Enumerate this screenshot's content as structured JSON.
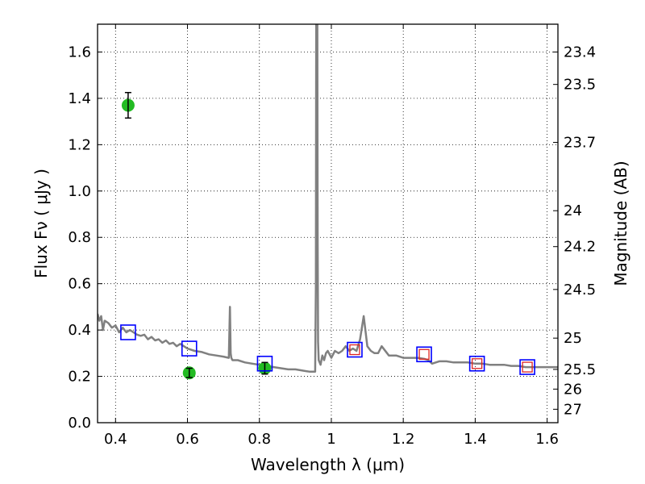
{
  "chart_data": {
    "type": "scatter",
    "title": "",
    "xlabel": "Wavelength  λ (μm)",
    "ylabel": "Flux  Fν  ( μJy )",
    "y2label": "Magnitude (AB)",
    "xlim": [
      0.35,
      1.63
    ],
    "ylim": [
      0.0,
      1.72
    ],
    "grid": true,
    "x_ticks": [
      0.4,
      0.6,
      0.8,
      1.0,
      1.2,
      1.4,
      1.6
    ],
    "x_tick_labels": [
      "0.4",
      "0.6",
      "0.8",
      "1",
      "1.2",
      "1.4",
      "1.6"
    ],
    "y_ticks": [
      0.0,
      0.2,
      0.4,
      0.6,
      0.8,
      1.0,
      1.2,
      1.4,
      1.6
    ],
    "y_tick_labels": [
      "0.0",
      "0.2",
      "0.4",
      "0.6",
      "0.8",
      "1.0",
      "1.2",
      "1.4",
      "1.6"
    ],
    "y2_ticks": [
      {
        "label": "23.4",
        "flux": 1.6
      },
      {
        "label": "23.5",
        "flux": 1.46
      },
      {
        "label": "23.7",
        "flux": 1.21
      },
      {
        "label": "24",
        "flux": 0.915
      },
      {
        "label": "24.2",
        "flux": 0.76
      },
      {
        "label": "24.5",
        "flux": 0.575
      },
      {
        "label": "25",
        "flux": 0.365
      },
      {
        "label": "25.5",
        "flux": 0.23
      },
      {
        "label": "26",
        "flux": 0.145
      },
      {
        "label": "27",
        "flux": 0.058
      }
    ],
    "series": [
      {
        "kind": "line",
        "color": "#808080",
        "x": [
          0.35,
          0.355,
          0.36,
          0.365,
          0.37,
          0.38,
          0.39,
          0.4,
          0.41,
          0.42,
          0.43,
          0.44,
          0.45,
          0.46,
          0.47,
          0.48,
          0.49,
          0.5,
          0.51,
          0.52,
          0.53,
          0.54,
          0.55,
          0.56,
          0.57,
          0.58,
          0.6,
          0.62,
          0.64,
          0.66,
          0.68,
          0.7,
          0.715,
          0.718,
          0.72,
          0.722,
          0.725,
          0.74,
          0.76,
          0.78,
          0.8,
          0.82,
          0.84,
          0.86,
          0.88,
          0.9,
          0.92,
          0.94,
          0.955,
          0.957,
          0.958,
          0.959,
          0.96,
          0.961,
          0.962,
          0.963,
          0.965,
          0.97,
          0.975,
          0.98,
          0.985,
          0.99,
          1.0,
          1.01,
          1.02,
          1.03,
          1.04,
          1.05,
          1.06,
          1.07,
          1.08,
          1.09,
          1.1,
          1.11,
          1.12,
          1.13,
          1.14,
          1.16,
          1.18,
          1.2,
          1.22,
          1.24,
          1.26,
          1.27,
          1.28,
          1.3,
          1.32,
          1.34,
          1.36,
          1.38,
          1.4,
          1.42,
          1.44,
          1.46,
          1.48,
          1.5,
          1.52,
          1.54,
          1.56,
          1.58,
          1.6,
          1.63
        ],
        "y": [
          0.47,
          0.44,
          0.46,
          0.4,
          0.44,
          0.43,
          0.41,
          0.42,
          0.39,
          0.41,
          0.39,
          0.4,
          0.39,
          0.38,
          0.375,
          0.38,
          0.36,
          0.37,
          0.355,
          0.36,
          0.345,
          0.355,
          0.34,
          0.345,
          0.33,
          0.34,
          0.32,
          0.31,
          0.305,
          0.295,
          0.29,
          0.285,
          0.28,
          0.5,
          0.3,
          0.28,
          0.27,
          0.27,
          0.26,
          0.255,
          0.25,
          0.245,
          0.24,
          0.235,
          0.23,
          0.23,
          0.225,
          0.22,
          0.22,
          0.6,
          1.72,
          1.72,
          1.72,
          1.72,
          0.8,
          0.35,
          0.27,
          0.25,
          0.29,
          0.27,
          0.3,
          0.31,
          0.28,
          0.31,
          0.3,
          0.31,
          0.33,
          0.31,
          0.32,
          0.31,
          0.36,
          0.46,
          0.33,
          0.31,
          0.3,
          0.3,
          0.33,
          0.29,
          0.29,
          0.28,
          0.28,
          0.28,
          0.275,
          0.27,
          0.255,
          0.265,
          0.265,
          0.26,
          0.26,
          0.26,
          0.255,
          0.255,
          0.25,
          0.25,
          0.25,
          0.245,
          0.245,
          0.24,
          0.24,
          0.24,
          0.24,
          0.24
        ]
      },
      {
        "kind": "errorbar-circle",
        "color": "#22bb22",
        "points": [
          {
            "x": 0.435,
            "y": 1.37,
            "err": 0.055
          },
          {
            "x": 0.605,
            "y": 0.215,
            "err": 0.02
          },
          {
            "x": 0.815,
            "y": 0.235,
            "err": 0.025
          }
        ]
      },
      {
        "kind": "open-square",
        "color": "#0000ff",
        "points": [
          {
            "x": 0.435,
            "y": 0.39
          },
          {
            "x": 0.605,
            "y": 0.32
          },
          {
            "x": 0.815,
            "y": 0.255
          },
          {
            "x": 1.065,
            "y": 0.315
          },
          {
            "x": 1.258,
            "y": 0.295
          },
          {
            "x": 1.405,
            "y": 0.255
          },
          {
            "x": 1.545,
            "y": 0.24
          }
        ]
      },
      {
        "kind": "open-square-small",
        "color": "#dd2222",
        "points": [
          {
            "x": 1.065,
            "y": 0.315
          },
          {
            "x": 1.258,
            "y": 0.295
          },
          {
            "x": 1.405,
            "y": 0.255
          },
          {
            "x": 1.545,
            "y": 0.24
          }
        ]
      }
    ]
  }
}
